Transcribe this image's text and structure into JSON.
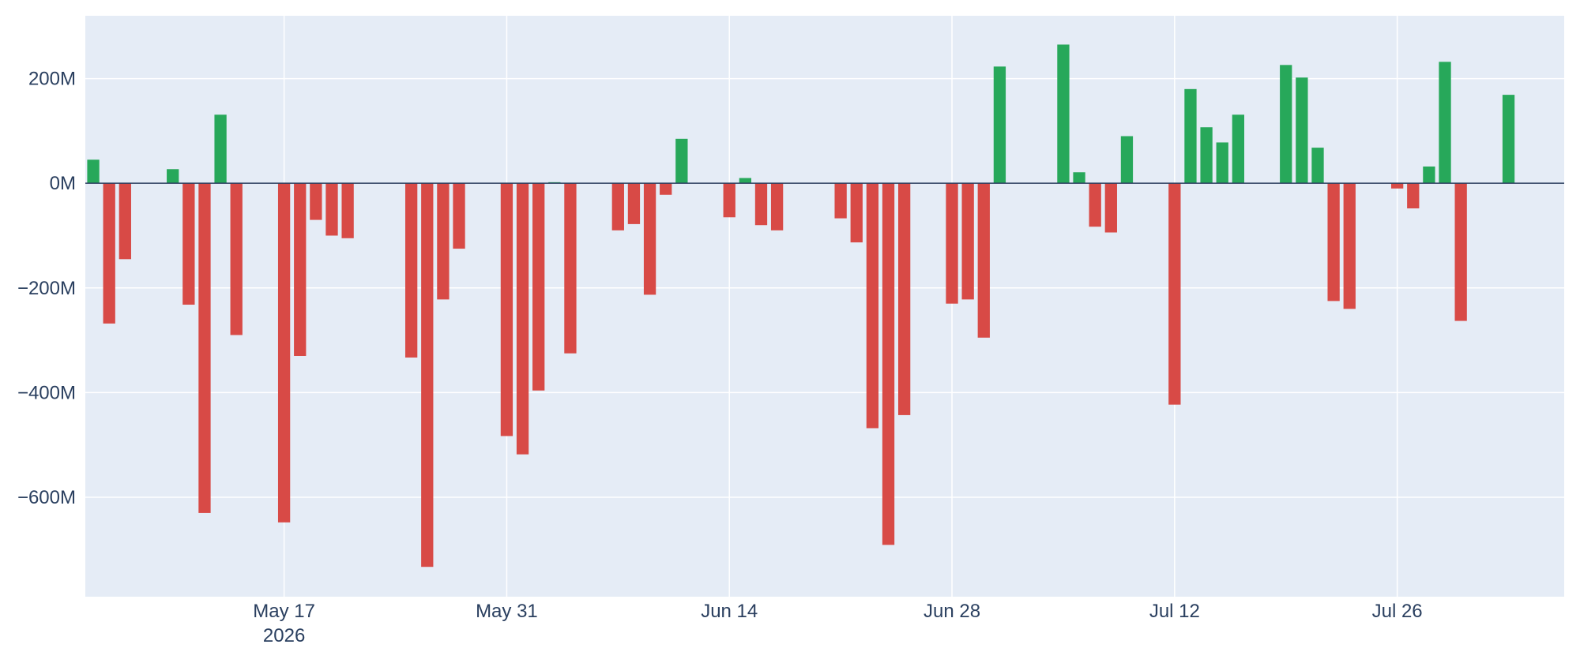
{
  "chart_data": {
    "type": "bar",
    "colors": {
      "positive": "#27a85a",
      "negative": "#d84a46",
      "plot_bg": "#e5ecf6",
      "grid": "#ffffff",
      "zero_line": "#2a3f5f",
      "text": "#2a3f5f"
    },
    "grid": true,
    "legend": "none",
    "title": "",
    "xlabel": "",
    "ylabel": "",
    "ylim": [
      -790000000,
      320000000
    ],
    "xlim": [
      "2026-05-05",
      "2026-08-05"
    ],
    "yticks": [
      {
        "value": 200000000,
        "label": "200M"
      },
      {
        "value": 0,
        "label": "0M"
      },
      {
        "value": -200000000,
        "label": "−200M"
      },
      {
        "value": -400000000,
        "label": "−400M"
      },
      {
        "value": -600000000,
        "label": "−600M"
      }
    ],
    "xticks": [
      {
        "date": "2026-05-17",
        "label": "May 17",
        "sublabel": "2026"
      },
      {
        "date": "2026-05-31",
        "label": "May 31"
      },
      {
        "date": "2026-06-14",
        "label": "Jun 14"
      },
      {
        "date": "2026-06-28",
        "label": "Jun 28"
      },
      {
        "date": "2026-07-12",
        "label": "Jul 12"
      },
      {
        "date": "2026-07-26",
        "label": "Jul 26"
      }
    ],
    "x": [
      "2026-05-05",
      "2026-05-06",
      "2026-05-07",
      "2026-05-10",
      "2026-05-11",
      "2026-05-12",
      "2026-05-13",
      "2026-05-14",
      "2026-05-17",
      "2026-05-18",
      "2026-05-19",
      "2026-05-20",
      "2026-05-21",
      "2026-05-25",
      "2026-05-26",
      "2026-05-27",
      "2026-05-28",
      "2026-05-31",
      "2026-06-01",
      "2026-06-02",
      "2026-06-03",
      "2026-06-04",
      "2026-06-07",
      "2026-06-08",
      "2026-06-09",
      "2026-06-10",
      "2026-06-11",
      "2026-06-14",
      "2026-06-15",
      "2026-06-16",
      "2026-06-17",
      "2026-06-21",
      "2026-06-22",
      "2026-06-23",
      "2026-06-24",
      "2026-06-25",
      "2026-06-28",
      "2026-06-29",
      "2026-06-30",
      "2026-07-01",
      "2026-07-05",
      "2026-07-06",
      "2026-07-07",
      "2026-07-08",
      "2026-07-09",
      "2026-07-12",
      "2026-07-13",
      "2026-07-14",
      "2026-07-15",
      "2026-07-16",
      "2026-07-19",
      "2026-07-20",
      "2026-07-21",
      "2026-07-22",
      "2026-07-23",
      "2026-07-26",
      "2026-07-27",
      "2026-07-28",
      "2026-07-29",
      "2026-07-30",
      "2026-08-02"
    ],
    "values": [
      45000000,
      -268000000,
      -145000000,
      27000000,
      -232000000,
      -630000000,
      131000000,
      -290000000,
      -648000000,
      -330000000,
      -70000000,
      -100000000,
      -105000000,
      -333000000,
      -733000000,
      -222000000,
      -125000000,
      -483000000,
      -518000000,
      -396000000,
      2000000,
      -325000000,
      -90000000,
      -78000000,
      -213000000,
      -22000000,
      85000000,
      -65000000,
      10000000,
      -80000000,
      -90000000,
      -67000000,
      -113000000,
      -468000000,
      -691000000,
      -443000000,
      -230000000,
      -222000000,
      -295000000,
      223000000,
      265000000,
      21000000,
      -83000000,
      -94000000,
      90000000,
      -423000000,
      180000000,
      107000000,
      78000000,
      131000000,
      226000000,
      202000000,
      68000000,
      -225000000,
      -240000000,
      -10000000,
      -48000000,
      32000000,
      232000000,
      -263000000,
      169000000
    ]
  }
}
